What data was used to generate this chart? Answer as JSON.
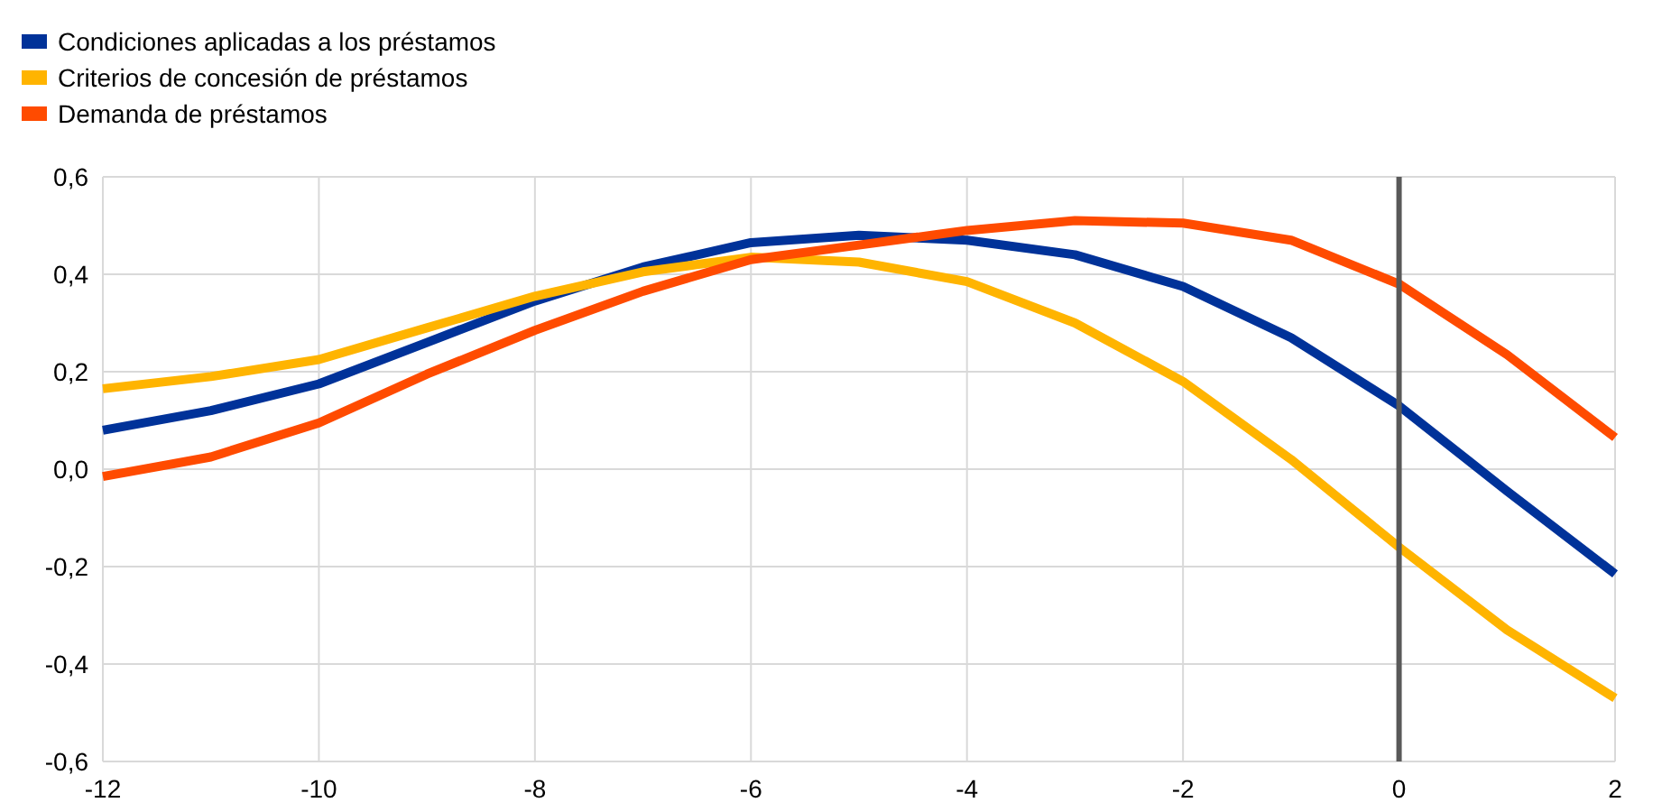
{
  "chart_data": {
    "type": "line",
    "x": [
      -12,
      -11,
      -10,
      -9,
      -8,
      -7,
      -6,
      -5,
      -4,
      -3,
      -2,
      -1,
      0,
      1,
      2
    ],
    "series": [
      {
        "name": "Condiciones aplicadas a los préstamos",
        "color": "#003299",
        "values": [
          0.08,
          0.12,
          0.175,
          0.26,
          0.345,
          0.415,
          0.465,
          0.48,
          0.47,
          0.44,
          0.375,
          0.27,
          0.13,
          -0.045,
          -0.215
        ]
      },
      {
        "name": "Criterios de concesión de préstamos",
        "color": "#ffb400",
        "values": [
          0.165,
          0.19,
          0.225,
          0.29,
          0.355,
          0.405,
          0.435,
          0.425,
          0.385,
          0.3,
          0.18,
          0.02,
          -0.16,
          -0.33,
          -0.47
        ]
      },
      {
        "name": "Demanda de préstamos",
        "color": "#ff4b00",
        "values": [
          -0.015,
          0.025,
          0.095,
          0.195,
          0.285,
          0.365,
          0.43,
          0.46,
          0.49,
          0.51,
          0.505,
          0.47,
          0.38,
          0.235,
          0.065
        ]
      }
    ],
    "xlim": [
      -12,
      2
    ],
    "xticks": [
      -12,
      -10,
      -8,
      -6,
      -4,
      -2,
      0,
      2
    ],
    "ylim": [
      -0.6,
      0.6
    ],
    "yticks": [
      {
        "value": -0.6,
        "label": "-0,6"
      },
      {
        "value": -0.4,
        "label": "-0,4"
      },
      {
        "value": -0.2,
        "label": "-0,2"
      },
      {
        "value": 0,
        "label": "0,0"
      },
      {
        "value": 0.2,
        "label": "0,2"
      },
      {
        "value": 0.4,
        "label": "0,4"
      },
      {
        "value": 0.6,
        "label": "0,6"
      }
    ],
    "ref_lines": [
      {
        "axis": "x",
        "value": 0,
        "color": "#595959"
      }
    ],
    "grid": true,
    "legend": "top left",
    "marker": "none",
    "line_style": "solid"
  }
}
